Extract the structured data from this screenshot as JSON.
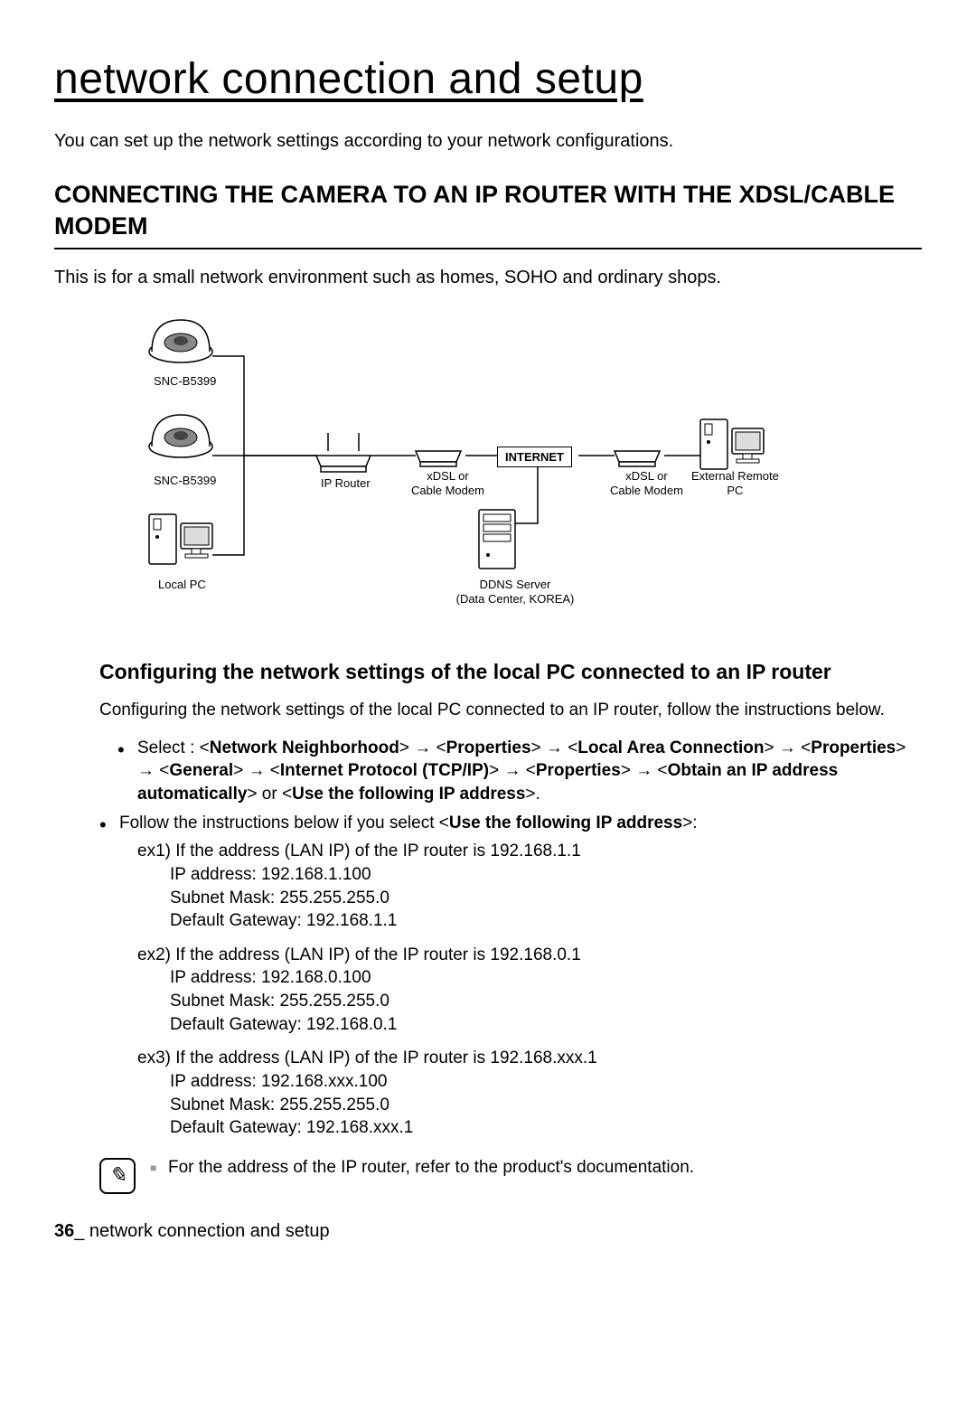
{
  "page": {
    "title": "network connection and setup",
    "intro": "You can set up the network settings according to your network configurations.",
    "footer_page": "36",
    "footer_text": "_ network connection and setup"
  },
  "section": {
    "heading": "CONNECTING THE CAMERA TO AN IP ROUTER WITH THE XDSL/CABLE MODEM",
    "intro": "This is for a small network environment such as homes, SOHO and ordinary shops."
  },
  "diagram": {
    "camera1_label": "SNC-B5399",
    "camera2_label": "SNC-B5399",
    "local_pc_label": "Local PC",
    "ip_router_label": "IP Router",
    "modem1_label": "xDSL or\nCable Modem",
    "modem2_label": "xDSL or\nCable Modem",
    "internet_box": "INTERNET",
    "remote_pc_label": "External Remote\nPC",
    "ddns_label": "DDNS Server\n(Data Center, KOREA)"
  },
  "subsection": {
    "heading": "Configuring the network settings of the local PC connected to an IP router",
    "intro": "Configuring the network settings of the local PC connected to an IP router, follow the instructions below.",
    "bullet1_pre": "Select : <",
    "bullet1_nn": "Network Neighborhood",
    "bullet1_prop": "Properties",
    "bullet1_lac": "Local Area Connection",
    "bullet1_gen": "General",
    "bullet1_ip": "Internet Protocol (TCP/IP)",
    "bullet1_obtain": "Obtain an IP address automatically",
    "bullet1_or": "> or <",
    "bullet1_use": "Use the following IP address",
    "bullet2_pre": "Follow the instructions below if you select <",
    "bullet2_use": "Use the following IP address",
    "bullet2_post": ">:"
  },
  "examples": [
    {
      "label": "ex1)",
      "cond": "If the address (LAN IP) of the IP router is 192.168.1.1",
      "ip": "IP address: 192.168.1.100",
      "mask": "Subnet Mask: 255.255.255.0",
      "gw": "Default Gateway: 192.168.1.1"
    },
    {
      "label": "ex2)",
      "cond": "If the address (LAN IP) of the IP router is 192.168.0.1",
      "ip": "IP address: 192.168.0.100",
      "mask": "Subnet Mask: 255.255.255.0",
      "gw": "Default Gateway: 192.168.0.1"
    },
    {
      "label": "ex3)",
      "cond": "If the address (LAN IP) of the IP router is 192.168.xxx.1",
      "ip": "IP address: 192.168.xxx.100",
      "mask": "Subnet Mask: 255.255.255.0",
      "gw": "Default Gateway: 192.168.xxx.1"
    }
  ],
  "note": {
    "text": "For the address of the IP router, refer to the product's documentation."
  }
}
